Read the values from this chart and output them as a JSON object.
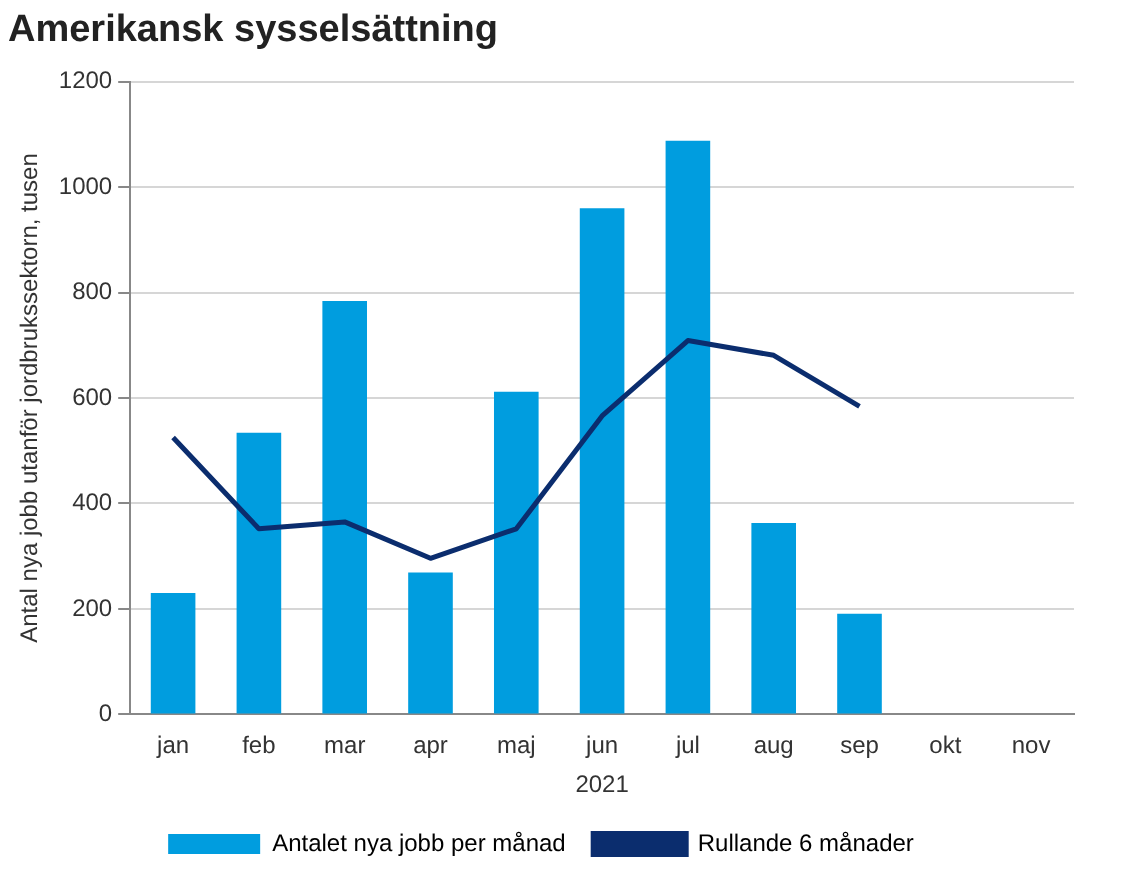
{
  "chart_data": {
    "type": "bar",
    "title": "Amerikansk sysselsättning",
    "xlabel": "2021",
    "ylabel": "Antal nya jobb utanför jordbrukssektorn, tusen",
    "categories": [
      "jan",
      "feb",
      "mar",
      "apr",
      "maj",
      "jun",
      "jul",
      "aug",
      "sep",
      "okt",
      "nov"
    ],
    "series": [
      {
        "name": "Antalet nya jobb per månad",
        "color": "#009ddf",
        "values": [
          230,
          534,
          784,
          269,
          612,
          960,
          1088,
          363,
          191,
          null,
          null
        ]
      },
      {
        "name": "Rullande 6 månader",
        "type": "line",
        "color": "#0b2d6e",
        "values": [
          525,
          352,
          365,
          296,
          352,
          566,
          709,
          681,
          584,
          null,
          null
        ]
      }
    ],
    "ylim": [
      0,
      1200
    ],
    "yticks": [
      0,
      200,
      400,
      600,
      800,
      1000,
      1200
    ],
    "grid": "y",
    "legend": "bottom",
    "marker": "none",
    "line_style": "solid"
  }
}
